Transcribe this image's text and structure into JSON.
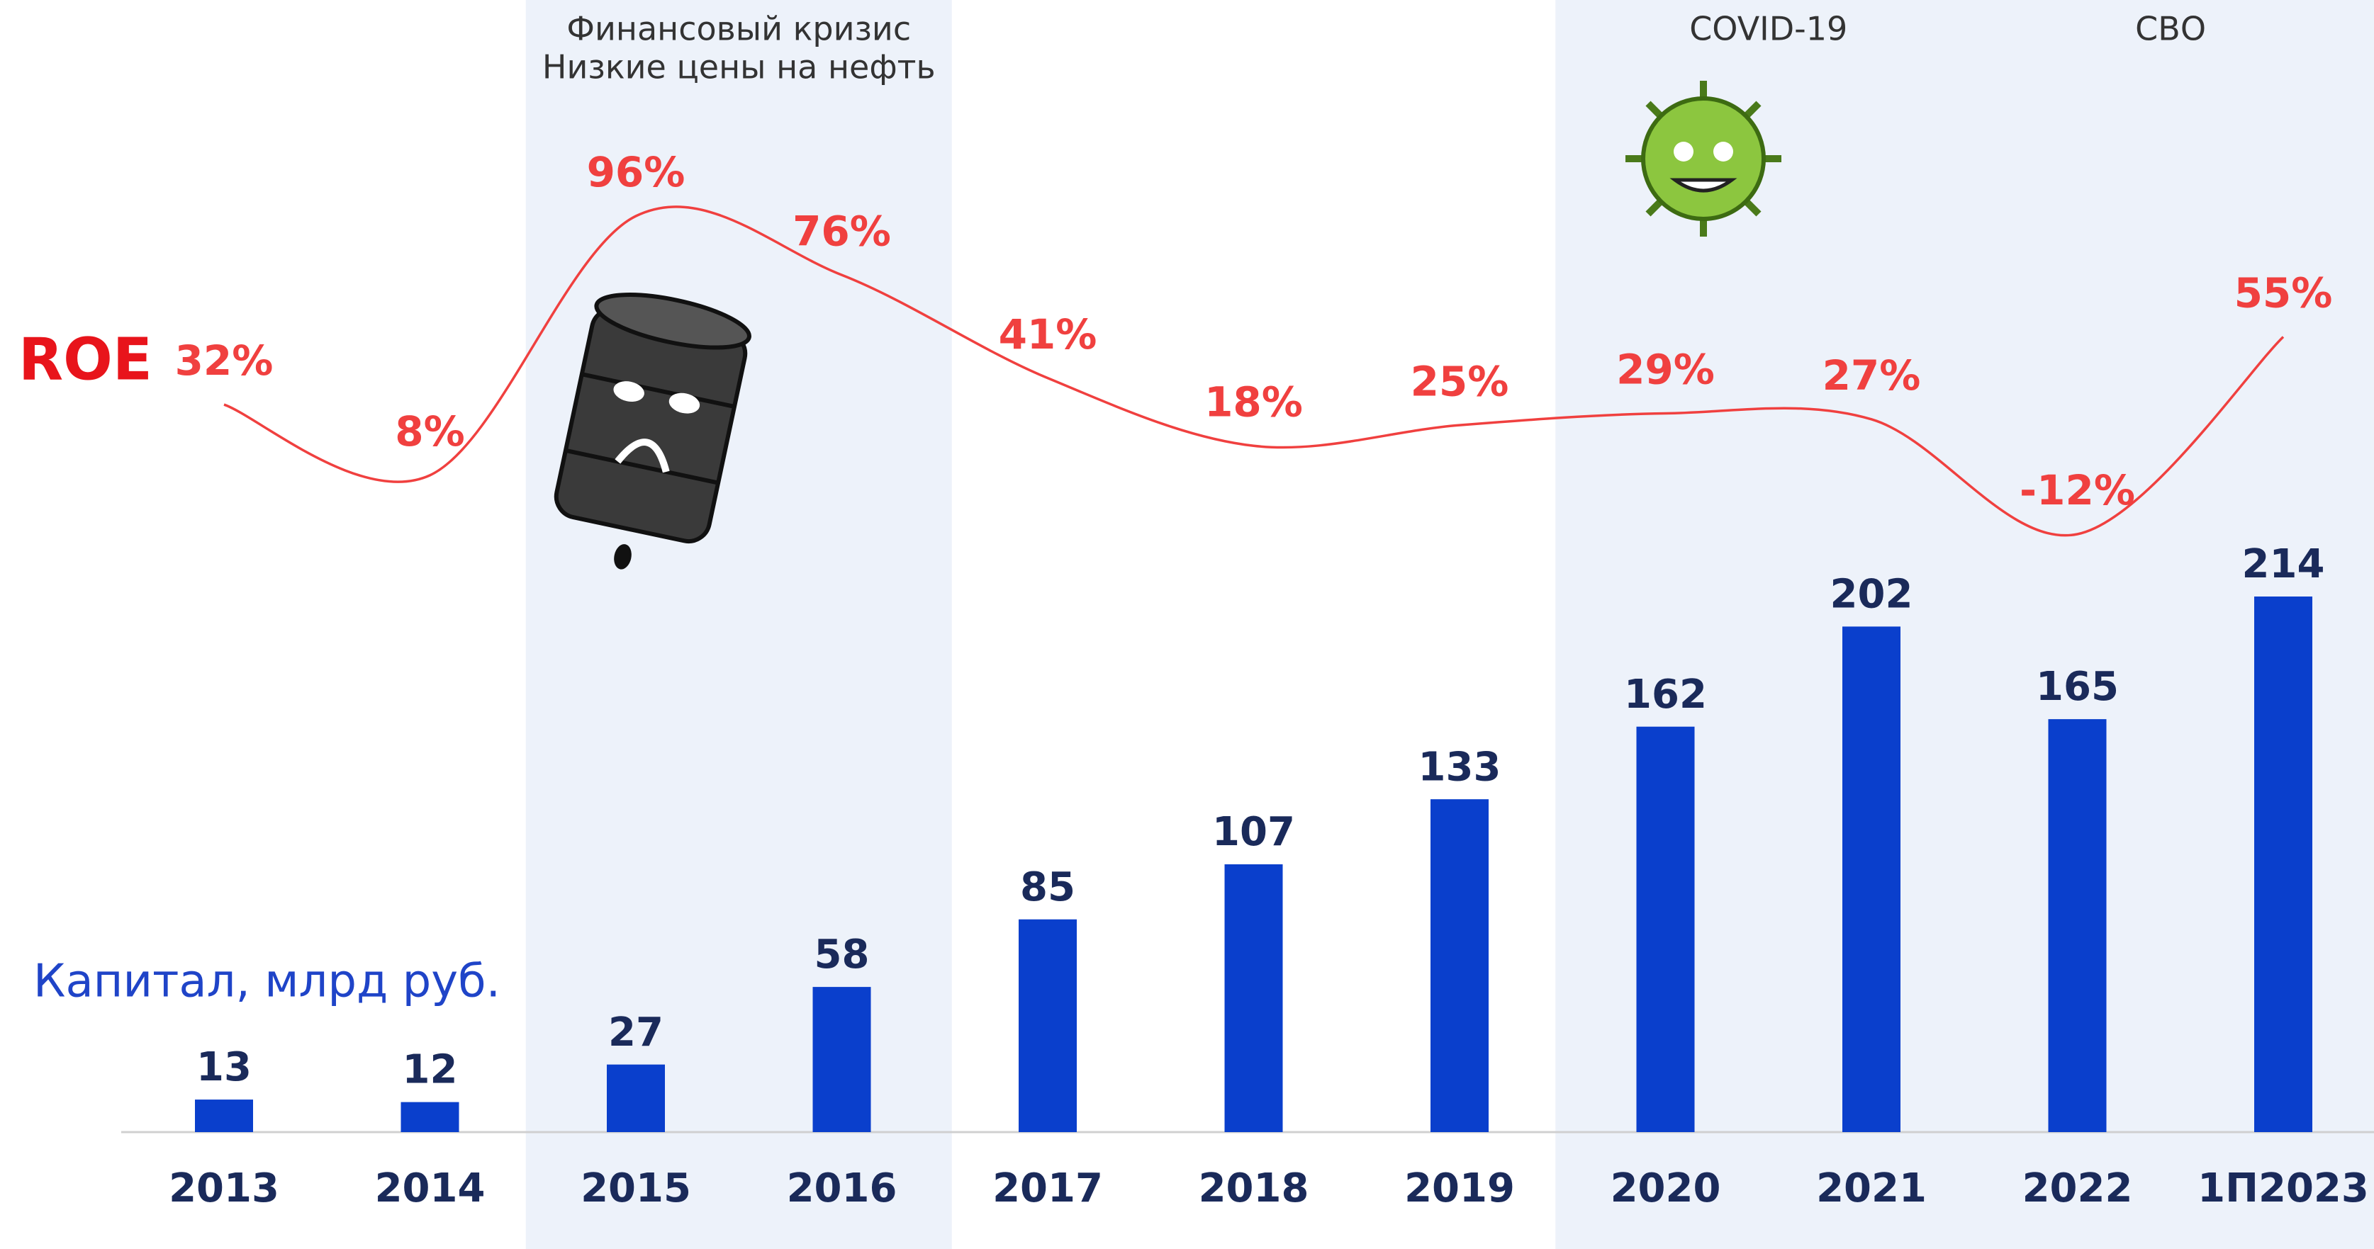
{
  "chart_data": {
    "type": "combo",
    "categories": [
      "2013",
      "2014",
      "2015",
      "2016",
      "2017",
      "2018",
      "2019",
      "2020",
      "2021",
      "2022",
      "1П2023"
    ],
    "series": [
      {
        "name": "Капитал, млрд руб.",
        "type": "bar",
        "color": "#0a3fcc",
        "values": [
          13,
          12,
          27,
          58,
          85,
          107,
          133,
          162,
          202,
          165,
          214
        ]
      },
      {
        "name": "ROE",
        "type": "line",
        "axis": "y2",
        "color": "#f0403f",
        "values": [
          32,
          8,
          96,
          76,
          41,
          18,
          25,
          29,
          27,
          -12,
          55
        ],
        "value_labels": [
          "32%",
          "8%",
          "96%",
          "76%",
          "41%",
          "18%",
          "25%",
          "29%",
          "27%",
          "-12%",
          "55%"
        ]
      }
    ],
    "periods": [
      {
        "labels": [
          "Финансовый кризис",
          "Низкие цены на нефть"
        ],
        "from": "2015",
        "to": "2016"
      },
      {
        "labels": [
          "COVID-19"
        ],
        "from": "2020",
        "to": "2021"
      },
      {
        "labels": [
          "СВО"
        ],
        "from": "2022",
        "to": "1П2023"
      }
    ],
    "band_color": "#edf2fa"
  }
}
